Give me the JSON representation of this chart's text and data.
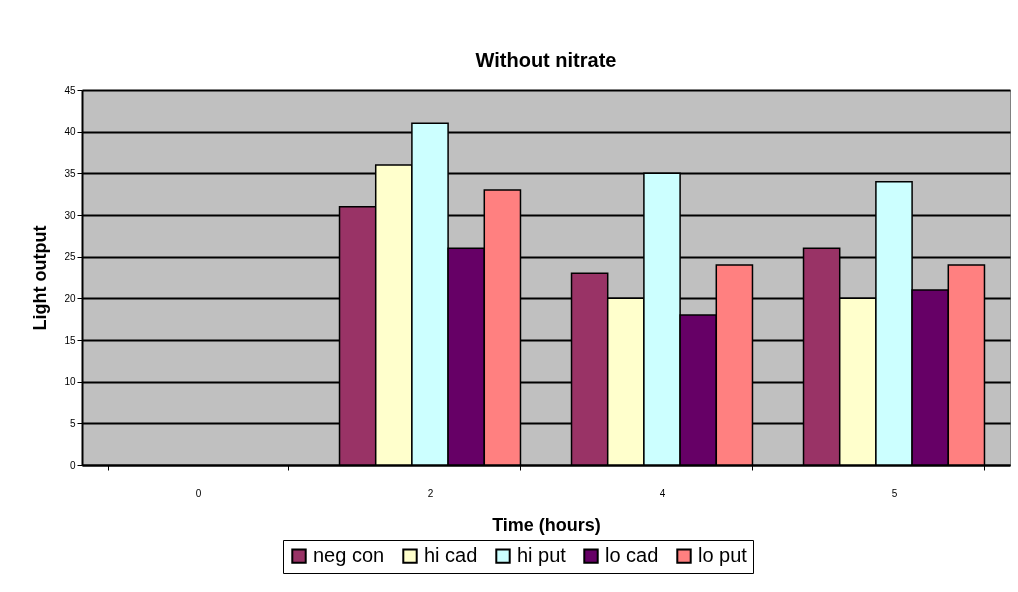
{
  "chart_data": {
    "type": "bar",
    "title": "Without nitrate",
    "xlabel": "Time (hours)",
    "ylabel": "Light output",
    "categories": [
      "0",
      "2",
      "4",
      "5"
    ],
    "series": [
      {
        "name": "neg con",
        "color": "#993366",
        "values": [
          null,
          31,
          23,
          26
        ]
      },
      {
        "name": "hi cad",
        "color": "#ffffcc",
        "values": [
          null,
          36,
          20,
          20
        ]
      },
      {
        "name": "hi put",
        "color": "#ccffff",
        "values": [
          null,
          41,
          35,
          34
        ]
      },
      {
        "name": "lo cad",
        "color": "#660066",
        "values": [
          null,
          26,
          18,
          21
        ]
      },
      {
        "name": "lo put",
        "color": "#ff8080",
        "values": [
          null,
          33,
          24,
          24
        ]
      }
    ],
    "ylim": [
      0,
      45
    ],
    "yticks": [
      0,
      5,
      10,
      15,
      20,
      25,
      30,
      35,
      40,
      45
    ],
    "grid": "y",
    "legend": "bottom"
  }
}
